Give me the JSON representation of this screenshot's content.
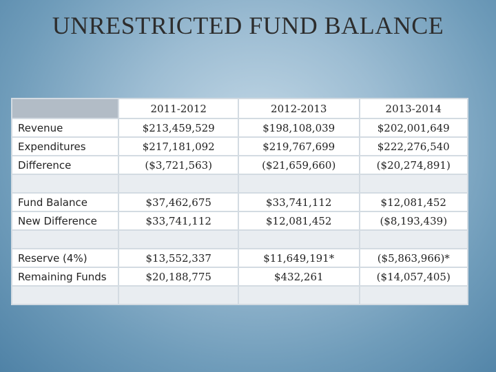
{
  "title": "UNRESTRICTED FUND BALANCE",
  "columns": [
    "2011-2012",
    "2012-2013",
    "2013-2014"
  ],
  "rows": [
    {
      "label": "Revenue",
      "values": [
        "$213,459,529",
        "$198,108,039",
        "$202,001,649"
      ]
    },
    {
      "label": "Expenditures",
      "values": [
        "$217,181,092",
        "$219,767,699",
        "$222,276,540"
      ]
    },
    {
      "label": "Difference",
      "values": [
        "($3,721,563)",
        "($21,659,660)",
        "($20,274,891)"
      ]
    },
    {
      "label": "Fund Balance",
      "values": [
        "$37,462,675",
        "$33,741,112",
        "$12,081,452"
      ]
    },
    {
      "label": "New Difference",
      "values": [
        "$33,741,112",
        "$12,081,452",
        "($8,193,439)"
      ]
    },
    {
      "label": "Reserve (4%)",
      "values": [
        "$13,552,337",
        "$11,649,191*",
        "($5,863,966)*"
      ]
    },
    {
      "label": "Remaining Funds",
      "values": [
        "$20,188,775",
        "$432,261",
        "($14,057,405)"
      ]
    }
  ],
  "colors": {
    "negative": "#d2231f",
    "header_corner": "#b2bcc6",
    "grid": "#d3dbe2"
  }
}
